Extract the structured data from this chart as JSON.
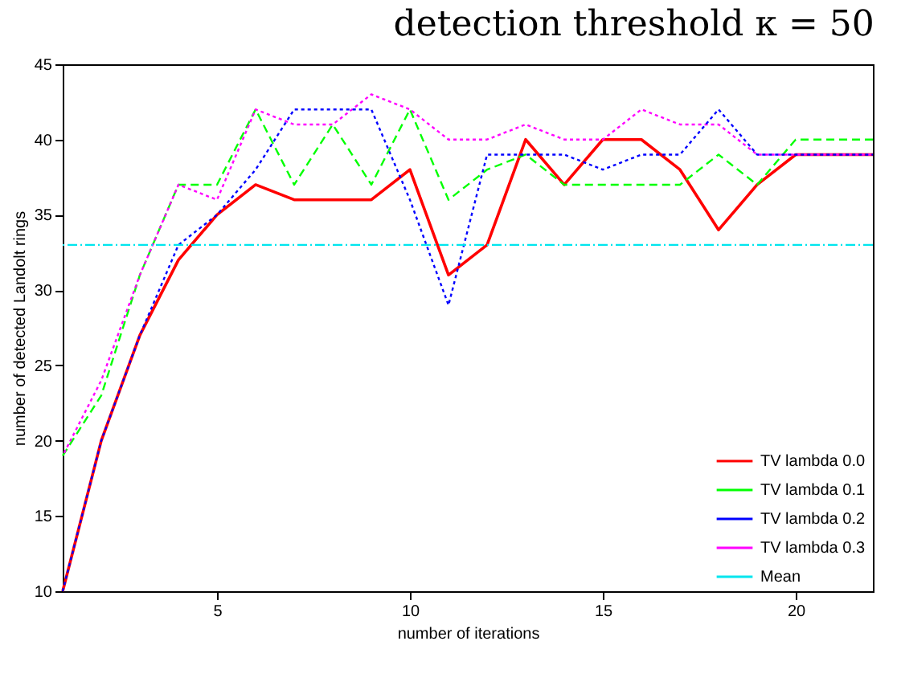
{
  "chart_data": {
    "type": "line",
    "title": "detection threshold κ = 50",
    "xlabel": "number of iterations",
    "ylabel": "number of detected Landolt rings",
    "x": [
      1,
      2,
      3,
      4,
      5,
      6,
      7,
      8,
      9,
      10,
      11,
      12,
      13,
      14,
      15,
      16,
      17,
      18,
      19,
      20,
      21,
      22
    ],
    "series": [
      {
        "name": "TV lambda 0.0",
        "color": "#ff0000",
        "line_style": "solid",
        "values": [
          10,
          20,
          27,
          32,
          35,
          37,
          36,
          36,
          36,
          38,
          31,
          33,
          40,
          37,
          40,
          40,
          38,
          34,
          37,
          39,
          39,
          39
        ]
      },
      {
        "name": "TV lambda 0.1",
        "color": "#00ff00",
        "line_style": "dashed",
        "values": [
          19,
          23,
          31,
          37,
          37,
          42,
          37,
          41,
          37,
          42,
          36,
          38,
          39,
          37,
          37,
          37,
          37,
          39,
          37,
          40,
          40,
          40
        ]
      },
      {
        "name": "TV lambda 0.2",
        "color": "#0000ff",
        "line_style": "dotted",
        "values": [
          10,
          20,
          27,
          33,
          35,
          38,
          42,
          42,
          42,
          36,
          29,
          39,
          39,
          39,
          38,
          39,
          39,
          42,
          39,
          39,
          39,
          39
        ]
      },
      {
        "name": "TV lambda 0.3",
        "color": "#ff00ff",
        "line_style": "dotted",
        "values": [
          19,
          24,
          31,
          37,
          36,
          42,
          41,
          41,
          43,
          42,
          40,
          40,
          41,
          40,
          40,
          42,
          41,
          41,
          39,
          39,
          39,
          39
        ]
      }
    ],
    "ref_lines": [
      {
        "axis": "y",
        "value": 33,
        "label": "Mean",
        "color": "#00e5ee",
        "line_style": "dashdot"
      }
    ],
    "xlim": [
      1,
      22
    ],
    "xticks": [
      5,
      10,
      15,
      20
    ],
    "ylim": [
      10,
      45
    ],
    "yticks": [
      10,
      15,
      20,
      25,
      30,
      35,
      40,
      45
    ],
    "grid": false,
    "legend": "bottom right",
    "marker": "none"
  }
}
